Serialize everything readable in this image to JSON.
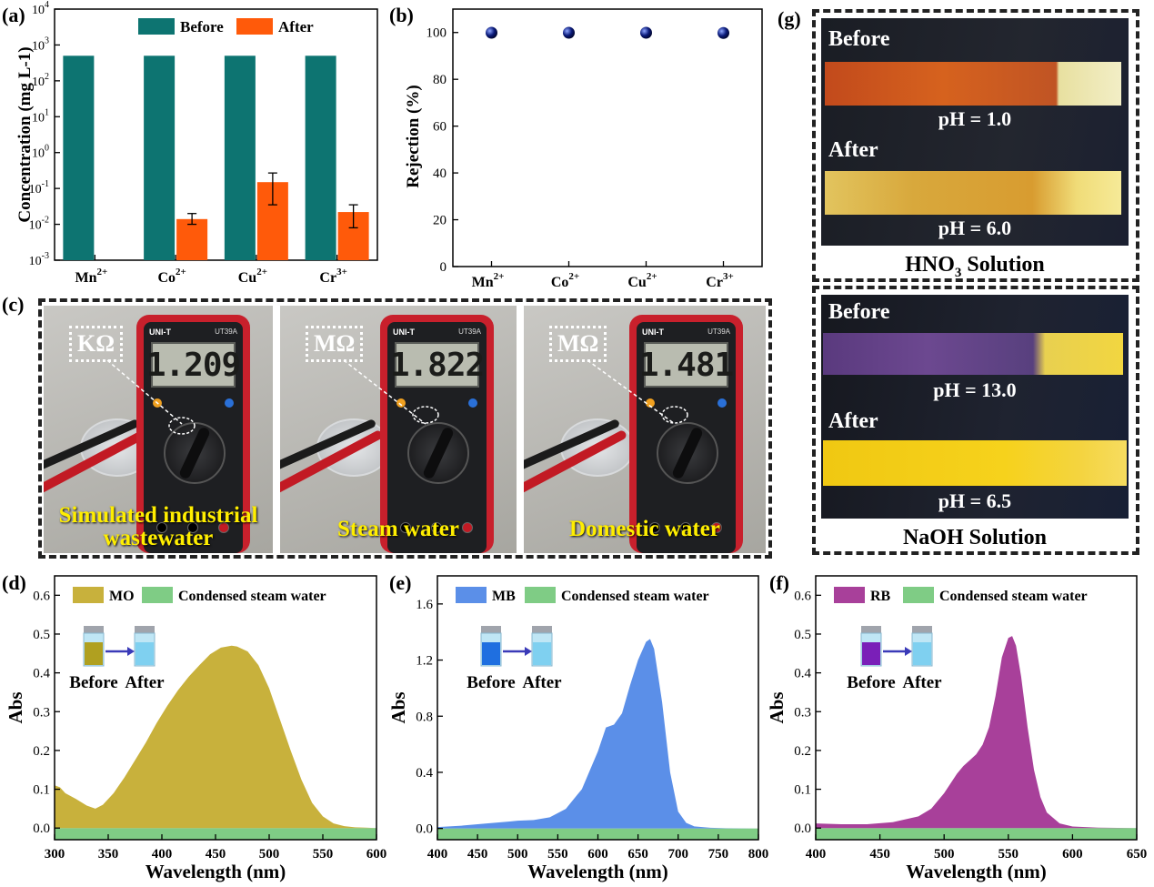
{
  "panel_labels": {
    "a": "(a)",
    "b": "(b)",
    "c": "(c)",
    "d": "(d)",
    "e": "(e)",
    "f": "(f)",
    "g": "(g)"
  },
  "colors": {
    "before": "#0d7471",
    "after": "#ff5a0a",
    "mo": "#c8b13c",
    "mb": "#5b8fe8",
    "rb": "#a8409a",
    "steam": "#7fcc85",
    "point": "#0a1a7a"
  },
  "chart_data": [
    {
      "id": "a",
      "type": "bar",
      "title": "",
      "categories": [
        "Mn",
        "Co",
        "Cu",
        "Cr"
      ],
      "category_sup": [
        "2+",
        "2+",
        "2+",
        "3+"
      ],
      "series": [
        {
          "name": "Before",
          "values": [
            500,
            500,
            500,
            500
          ]
        },
        {
          "name": "After",
          "values": [
            null,
            0.014,
            0.15,
            0.022
          ],
          "err_low": [
            null,
            0.01,
            0.035,
            0.008
          ],
          "err_high": [
            null,
            0.02,
            0.27,
            0.035
          ]
        }
      ],
      "ylabel": "Concentration (mg L-1)",
      "yscale": "log",
      "ylim": [
        0.001,
        10000
      ],
      "yticks_base": "10",
      "yticks_exp": [
        "-3",
        "-2",
        "-1",
        "0",
        "1",
        "2",
        "3",
        "4"
      ],
      "legend": "top"
    },
    {
      "id": "b",
      "type": "scatter",
      "title": "",
      "categories": [
        "Mn",
        "Co",
        "Cu",
        "Cr"
      ],
      "category_sup": [
        "2+",
        "2+",
        "2+",
        "3+"
      ],
      "values": [
        99.9,
        99.9,
        99.9,
        99.8
      ],
      "ylabel": "Rejection (%)",
      "ylim": [
        0,
        110
      ],
      "yticks": [
        "0",
        "20",
        "40",
        "60",
        "80",
        "100"
      ]
    },
    {
      "id": "d",
      "type": "area",
      "xlabel": "Wavelength (nm)",
      "ylabel": "Abs",
      "xlim": [
        300,
        600
      ],
      "ylim": [
        -0.03,
        0.65
      ],
      "xticks": [
        "300",
        "350",
        "400",
        "450",
        "500",
        "550",
        "600"
      ],
      "yticks": [
        "0.0",
        "0.1",
        "0.2",
        "0.3",
        "0.4",
        "0.5",
        "0.6"
      ],
      "series": [
        {
          "name": "MO",
          "x": [
            300,
            305,
            310,
            320,
            330,
            338,
            345,
            355,
            365,
            375,
            385,
            395,
            405,
            415,
            425,
            435,
            445,
            455,
            465,
            470,
            480,
            490,
            500,
            510,
            520,
            530,
            540,
            550,
            560,
            570,
            580,
            590,
            600
          ],
          "y": [
            0.11,
            0.105,
            0.09,
            0.075,
            0.058,
            0.05,
            0.06,
            0.09,
            0.13,
            0.175,
            0.22,
            0.27,
            0.315,
            0.355,
            0.39,
            0.42,
            0.448,
            0.465,
            0.47,
            0.468,
            0.455,
            0.42,
            0.36,
            0.28,
            0.2,
            0.125,
            0.065,
            0.03,
            0.012,
            0.005,
            0.002,
            0.001,
            0.0
          ]
        },
        {
          "name": "Condensed steam water",
          "value": -0.02
        }
      ],
      "inset": {
        "before": "Before",
        "after": "After",
        "vial_color": "#b0a020"
      }
    },
    {
      "id": "e",
      "type": "area",
      "xlabel": "Wavelength (nm)",
      "ylabel": "Abs",
      "xlim": [
        400,
        800
      ],
      "ylim": [
        -0.08,
        1.8
      ],
      "xticks": [
        "400",
        "450",
        "500",
        "550",
        "600",
        "650",
        "700",
        "750",
        "800"
      ],
      "yticks": [
        "0.0",
        "0.4",
        "0.8",
        "1.2",
        "1.6"
      ],
      "series": [
        {
          "name": "MB",
          "x": [
            400,
            430,
            460,
            490,
            500,
            520,
            540,
            560,
            580,
            600,
            610,
            620,
            630,
            640,
            650,
            660,
            665,
            670,
            680,
            690,
            700,
            710,
            720,
            740,
            760,
            800
          ],
          "y": [
            0.01,
            0.02,
            0.035,
            0.05,
            0.055,
            0.06,
            0.08,
            0.14,
            0.28,
            0.55,
            0.72,
            0.74,
            0.82,
            1.02,
            1.2,
            1.33,
            1.35,
            1.28,
            0.9,
            0.4,
            0.12,
            0.04,
            0.015,
            0.005,
            0.002,
            0.0
          ]
        },
        {
          "name": "Condensed steam water",
          "value": -0.02
        }
      ],
      "inset": {
        "before": "Before",
        "after": "After",
        "vial_color": "#1f6fe0"
      }
    },
    {
      "id": "f",
      "type": "area",
      "xlabel": "Wavelength (nm)",
      "ylabel": "Abs",
      "xlim": [
        400,
        650
      ],
      "ylim": [
        -0.03,
        0.65
      ],
      "xticks": [
        "400",
        "450",
        "500",
        "550",
        "600",
        "650"
      ],
      "yticks": [
        "0.0",
        "0.1",
        "0.2",
        "0.3",
        "0.4",
        "0.5",
        "0.6"
      ],
      "series": [
        {
          "name": "RB",
          "x": [
            400,
            420,
            440,
            460,
            480,
            490,
            500,
            510,
            515,
            520,
            525,
            530,
            535,
            540,
            545,
            550,
            553,
            556,
            560,
            565,
            570,
            575,
            580,
            590,
            600,
            620,
            650
          ],
          "y": [
            0.012,
            0.01,
            0.01,
            0.015,
            0.03,
            0.05,
            0.09,
            0.14,
            0.16,
            0.175,
            0.19,
            0.215,
            0.26,
            0.34,
            0.44,
            0.49,
            0.495,
            0.47,
            0.39,
            0.26,
            0.15,
            0.08,
            0.04,
            0.012,
            0.004,
            0.001,
            0.0
          ]
        },
        {
          "name": "Condensed steam water",
          "value": -0.02
        }
      ],
      "inset": {
        "before": "Before",
        "after": "After",
        "vial_color": "#7a1fb8"
      }
    }
  ],
  "panel_c": {
    "meters": [
      {
        "unit": "KΩ",
        "reading": "1.209",
        "caption_line1": "Simulated industrial",
        "caption_line2": "wastewater"
      },
      {
        "unit": "MΩ",
        "reading": "1.822",
        "caption_line1": "Steam water",
        "caption_line2": ""
      },
      {
        "unit": "MΩ",
        "reading": "1.481",
        "caption_line1": "Domestic water",
        "caption_line2": ""
      }
    ],
    "brand": "UNI-T",
    "model": "UT39A"
  },
  "panel_g": {
    "hno3": {
      "before": "Before",
      "after": "After",
      "ph_before": "pH = 1.0",
      "ph_after": "pH = 6.0",
      "title": "HNO",
      "title_sub": "3",
      "title_rest": " Solution"
    },
    "naoh": {
      "before": "Before",
      "after": "After",
      "ph_before": "pH = 13.0",
      "ph_after": "pH = 6.5",
      "title": "NaOH Solution"
    }
  }
}
